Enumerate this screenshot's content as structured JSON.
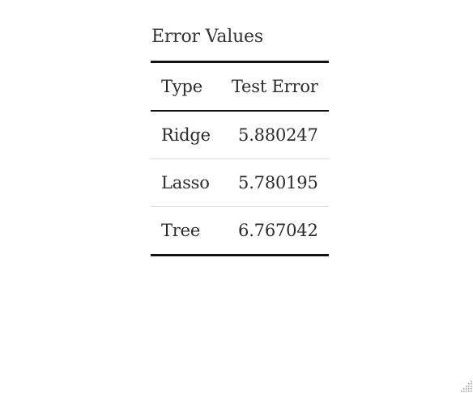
{
  "table": {
    "caption": "Error Values",
    "headers": [
      "Type",
      "Test Error"
    ],
    "rows": [
      [
        "Ridge",
        "5.880247"
      ],
      [
        "Lasso",
        "5.780195"
      ],
      [
        "Tree",
        "6.767042"
      ]
    ]
  },
  "icons": {
    "resize": "resize-grip-icon"
  }
}
